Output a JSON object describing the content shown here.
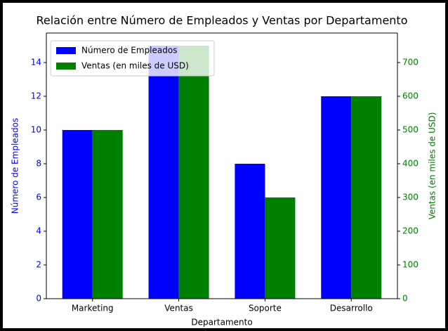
{
  "chart_data": {
    "type": "bar",
    "title": "Relación entre Número de Empleados y Ventas por Departamento",
    "x_label": "Departamento",
    "y_label": "Número de Empleados",
    "y2_label": "Ventas (en miles de USD)",
    "categories": [
      "Marketing",
      "Ventas",
      "Soporte",
      "Desarrollo"
    ],
    "series": [
      {
        "name": "Número de Empleados",
        "color": "#0000ff",
        "values": [
          10,
          15,
          8,
          12
        ],
        "axis": "y"
      },
      {
        "name": "Ventas (en miles de USD)",
        "color": "#008000",
        "values": [
          500,
          750,
          300,
          600
        ],
        "axis": "y2"
      }
    ],
    "ylim": [
      0,
      15.75
    ],
    "yticks": [
      0,
      2,
      4,
      6,
      8,
      10,
      12,
      14
    ],
    "y2lim": [
      0,
      787.5
    ],
    "y2ticks": [
      0,
      100,
      200,
      300,
      400,
      500,
      600,
      700
    ],
    "legend": "upper left"
  }
}
